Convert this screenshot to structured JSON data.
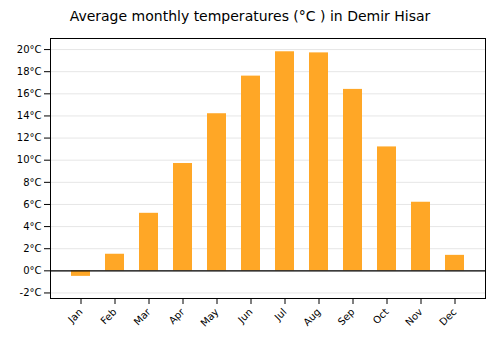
{
  "chart_data": {
    "type": "bar",
    "title": "Average monthly temperatures (°C ) in Demir Hisar",
    "categories": [
      "Jan",
      "Feb",
      "Mar",
      "Apr",
      "May",
      "Jun",
      "Jul",
      "Aug",
      "Sep",
      "Oct",
      "Nov",
      "Dec"
    ],
    "values": [
      -0.5,
      1.5,
      5.2,
      9.7,
      14.2,
      17.6,
      19.8,
      19.7,
      16.4,
      11.2,
      6.2,
      1.4
    ],
    "color": "#FFA726",
    "ylim": [
      -2.5,
      21
    ],
    "yticks": [
      {
        "value": -2,
        "label": "-2°C"
      },
      {
        "value": 0,
        "label": "0°C"
      },
      {
        "value": 2,
        "label": "2°C"
      },
      {
        "value": 4,
        "label": "4°C"
      },
      {
        "value": 6,
        "label": "6°C"
      },
      {
        "value": 8,
        "label": "8°C"
      },
      {
        "value": 10,
        "label": "10°C"
      },
      {
        "value": 12,
        "label": "12°C"
      },
      {
        "value": 14,
        "label": "14°C"
      },
      {
        "value": 16,
        "label": "16°C"
      },
      {
        "value": 18,
        "label": "18°C"
      },
      {
        "value": 20,
        "label": "20°C"
      }
    ],
    "grid": true
  }
}
